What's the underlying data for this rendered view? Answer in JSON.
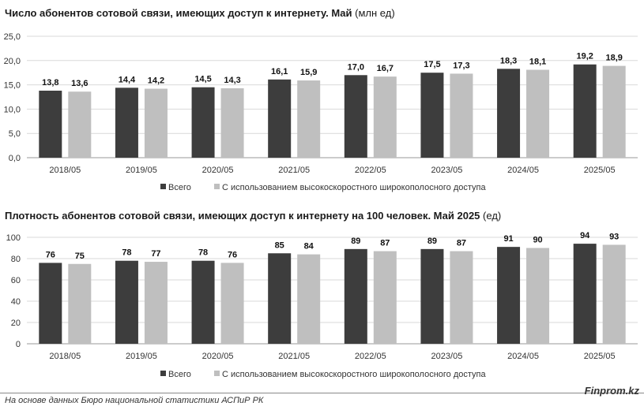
{
  "chart_data": [
    {
      "type": "bar",
      "title": "Число абонентов сотовой связи, имеющих доступ к интернету. Май",
      "unit": "(млн ед)",
      "categories": [
        "2018/05",
        "2019/05",
        "2020/05",
        "2021/05",
        "2022/05",
        "2023/05",
        "2024/05",
        "2025/05"
      ],
      "series": [
        {
          "name": "Всего",
          "color": "#3d3d3d",
          "values": [
            13.8,
            14.4,
            14.5,
            16.1,
            17.0,
            17.5,
            18.3,
            19.2
          ],
          "labels": [
            "13,8",
            "14,4",
            "14,5",
            "16,1",
            "17,0",
            "17,5",
            "18,3",
            "19,2"
          ]
        },
        {
          "name": "С использованием высокоскоростного широкополосного доступа",
          "color": "#bfbfbf",
          "values": [
            13.6,
            14.2,
            14.3,
            15.9,
            16.7,
            17.3,
            18.1,
            18.9
          ],
          "labels": [
            "13,6",
            "14,2",
            "14,3",
            "15,9",
            "16,7",
            "17,3",
            "18,1",
            "18,9"
          ]
        }
      ],
      "ylim": [
        0,
        25
      ],
      "yticks": [
        "0,0",
        "5,0",
        "10,0",
        "15,0",
        "20,0",
        "25,0"
      ],
      "grid": true,
      "legend": "bottom"
    },
    {
      "type": "bar",
      "title": "Плотность абонентов сотовой связи, имеющих доступ к интернету на 100 человек. Май 2025",
      "unit": "(ед)",
      "categories": [
        "2018/05",
        "2019/05",
        "2020/05",
        "2021/05",
        "2022/05",
        "2023/05",
        "2024/05",
        "2025/05"
      ],
      "series": [
        {
          "name": "Всего",
          "color": "#3d3d3d",
          "values": [
            76,
            78,
            78,
            85,
            89,
            89,
            91,
            94
          ],
          "labels": [
            "76",
            "78",
            "78",
            "85",
            "89",
            "89",
            "91",
            "94"
          ]
        },
        {
          "name": "С использованием высокоскоростного широкополосного доступа",
          "color": "#bfbfbf",
          "values": [
            75,
            77,
            76,
            84,
            87,
            87,
            90,
            93
          ],
          "labels": [
            "75",
            "77",
            "76",
            "84",
            "87",
            "87",
            "90",
            "93"
          ]
        }
      ],
      "ylim": [
        0,
        100
      ],
      "yticks": [
        "0",
        "20",
        "40",
        "60",
        "80",
        "100"
      ],
      "grid": true,
      "legend": "bottom"
    }
  ],
  "footer": {
    "source": "На основе данных Бюро национальной статистики АСПиР РК",
    "brand": "Finprom.kz"
  }
}
